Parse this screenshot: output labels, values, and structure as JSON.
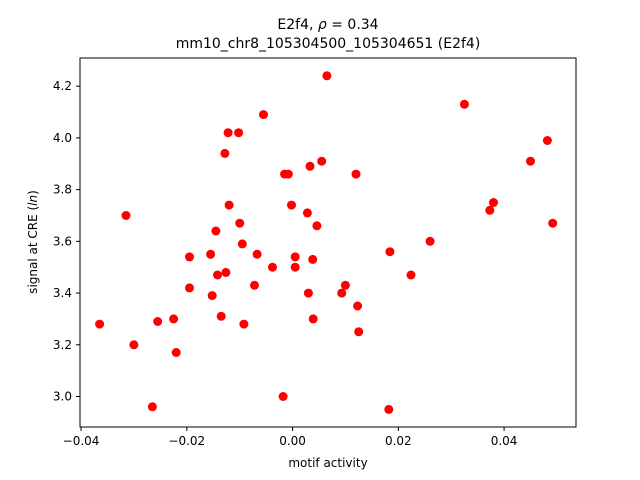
{
  "chart_data": {
    "type": "scatter",
    "title_line1_prefix": "E2f4, ",
    "title_line1_rho": "ρ",
    "title_line1_suffix": " = 0.34",
    "title_line2": "mm10_chr8_105304500_105304651 (E2f4)",
    "xlabel": "motif activity",
    "ylabel_prefix": "signal at CRE (",
    "ylabel_italic": "ln",
    "ylabel_suffix": ")",
    "xlim": [
      -0.0402,
      0.0536
    ],
    "ylim": [
      2.882,
      4.309
    ],
    "xticks": [
      -0.04,
      -0.02,
      0.0,
      0.02,
      0.04
    ],
    "xtick_labels": [
      "−0.04",
      "−0.02",
      "0.00",
      "0.02",
      "0.04"
    ],
    "yticks": [
      3.0,
      3.2,
      3.4,
      3.6,
      3.8,
      4.0,
      4.2
    ],
    "ytick_labels": [
      "3.0",
      "3.2",
      "3.4",
      "3.6",
      "3.8",
      "4.0",
      "4.2"
    ],
    "grid": false,
    "marker_color": "#ff0000",
    "points": [
      {
        "x": -0.0365,
        "y": 3.28
      },
      {
        "x": -0.0315,
        "y": 3.7
      },
      {
        "x": -0.03,
        "y": 3.2
      },
      {
        "x": -0.0265,
        "y": 2.96
      },
      {
        "x": -0.0255,
        "y": 3.29
      },
      {
        "x": -0.0225,
        "y": 3.3
      },
      {
        "x": -0.022,
        "y": 3.17
      },
      {
        "x": -0.0195,
        "y": 3.54
      },
      {
        "x": -0.0195,
        "y": 3.42
      },
      {
        "x": -0.0155,
        "y": 3.55
      },
      {
        "x": -0.0152,
        "y": 3.39
      },
      {
        "x": -0.0145,
        "y": 3.64
      },
      {
        "x": -0.0142,
        "y": 3.47
      },
      {
        "x": -0.0135,
        "y": 3.31
      },
      {
        "x": -0.0128,
        "y": 3.94
      },
      {
        "x": -0.0126,
        "y": 3.48
      },
      {
        "x": -0.0122,
        "y": 4.02
      },
      {
        "x": -0.012,
        "y": 3.74
      },
      {
        "x": -0.0102,
        "y": 4.02
      },
      {
        "x": -0.01,
        "y": 3.67
      },
      {
        "x": -0.0095,
        "y": 3.59
      },
      {
        "x": -0.0092,
        "y": 3.28
      },
      {
        "x": -0.0072,
        "y": 3.43
      },
      {
        "x": -0.0067,
        "y": 3.55
      },
      {
        "x": -0.0055,
        "y": 4.09
      },
      {
        "x": -0.0038,
        "y": 3.5
      },
      {
        "x": -0.0018,
        "y": 3.0
      },
      {
        "x": -0.0015,
        "y": 3.86
      },
      {
        "x": -0.0008,
        "y": 3.86
      },
      {
        "x": -0.0002,
        "y": 3.74
      },
      {
        "x": 0.0005,
        "y": 3.54
      },
      {
        "x": 0.0005,
        "y": 3.5
      },
      {
        "x": 0.0028,
        "y": 3.71
      },
      {
        "x": 0.003,
        "y": 3.4
      },
      {
        "x": 0.0033,
        "y": 3.89
      },
      {
        "x": 0.0038,
        "y": 3.53
      },
      {
        "x": 0.0039,
        "y": 3.3
      },
      {
        "x": 0.0046,
        "y": 3.66
      },
      {
        "x": 0.0055,
        "y": 3.91
      },
      {
        "x": 0.0065,
        "y": 4.24
      },
      {
        "x": 0.0093,
        "y": 3.4
      },
      {
        "x": 0.01,
        "y": 3.43
      },
      {
        "x": 0.012,
        "y": 3.86
      },
      {
        "x": 0.0123,
        "y": 3.35
      },
      {
        "x": 0.0125,
        "y": 3.25
      },
      {
        "x": 0.0182,
        "y": 2.95
      },
      {
        "x": 0.0184,
        "y": 3.56
      },
      {
        "x": 0.0224,
        "y": 3.47
      },
      {
        "x": 0.026,
        "y": 3.6
      },
      {
        "x": 0.0325,
        "y": 4.13
      },
      {
        "x": 0.0373,
        "y": 3.72
      },
      {
        "x": 0.038,
        "y": 3.75
      },
      {
        "x": 0.045,
        "y": 3.91
      },
      {
        "x": 0.0482,
        "y": 3.99
      },
      {
        "x": 0.0492,
        "y": 3.67
      }
    ]
  }
}
